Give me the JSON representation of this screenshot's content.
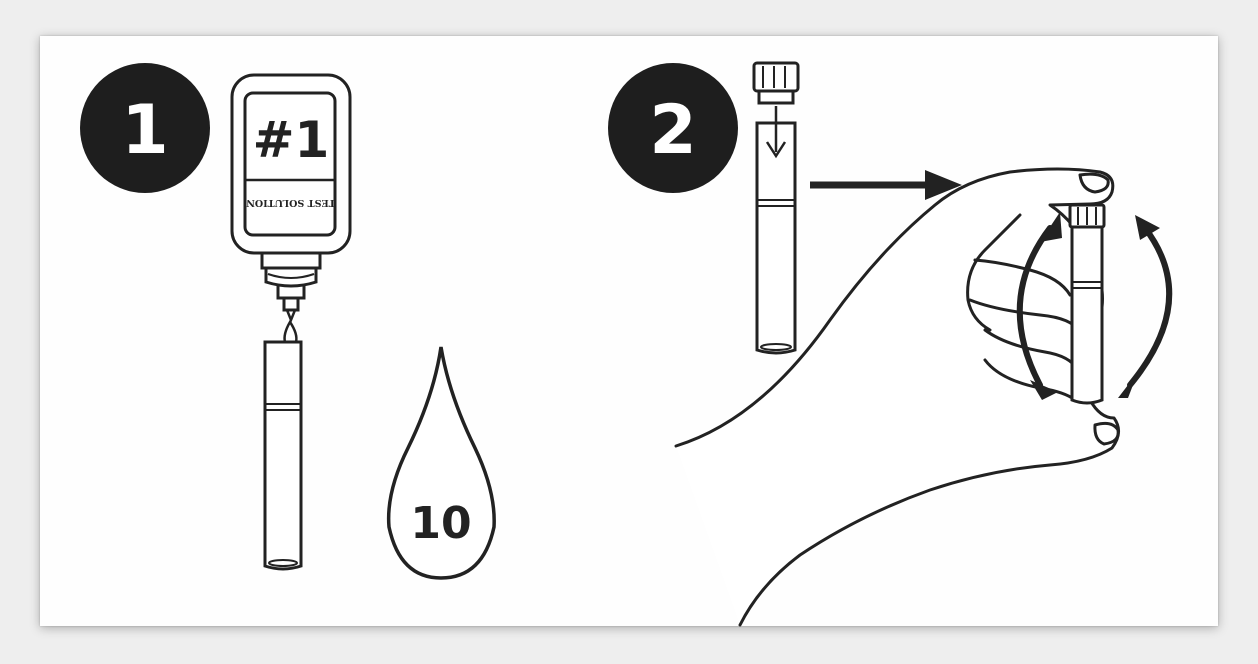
{
  "steps": [
    {
      "number": "1"
    },
    {
      "number": "2"
    }
  ],
  "bottle": {
    "label_big": "#1",
    "label_small": "TEST SOLUTION"
  },
  "drop": {
    "count": "10"
  },
  "colors": {
    "ink": "#222222",
    "circle": "#1e1e1e",
    "paper": "#ffffff",
    "background": "#eeeeee"
  }
}
